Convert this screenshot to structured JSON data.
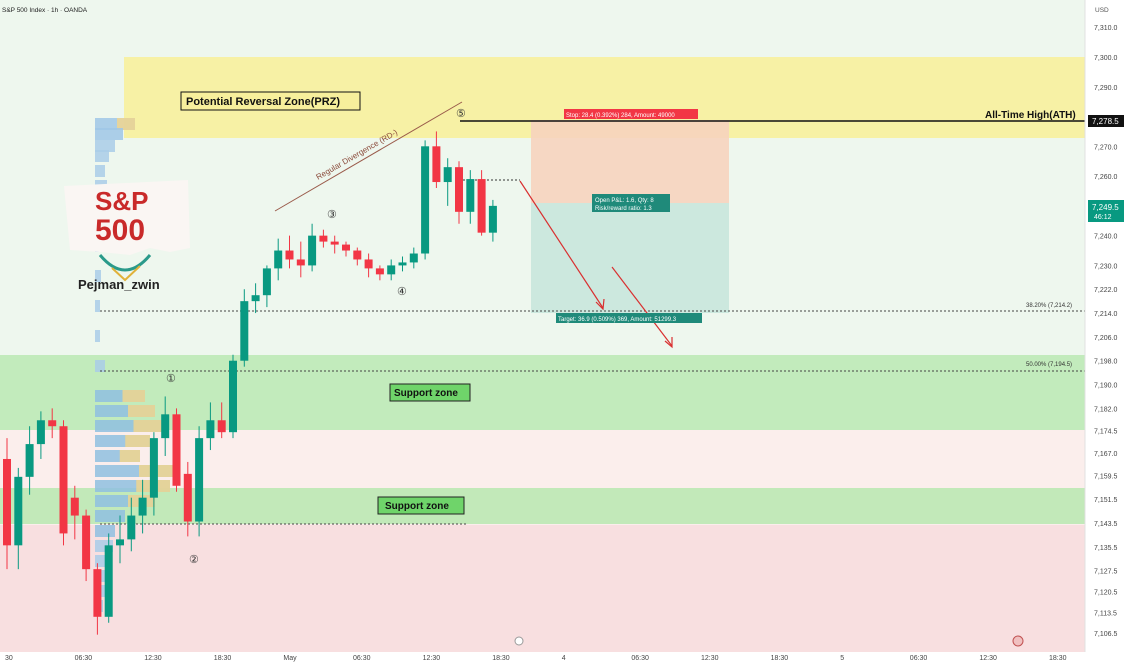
{
  "chart_data": {
    "type": "candlestick",
    "title": "S&P 500 Index · 1h · OANDA",
    "currency": "USD",
    "ylim": [
      7100,
      7317
    ],
    "y_ticks": [
      "7,310.0",
      "7,300.0",
      "7,290.0",
      "7,270.0",
      "7,260.0",
      "7,240.0",
      "7,230.0",
      "7,222.0",
      "7,214.0",
      "7,206.0",
      "7,198.0",
      "7,190.0",
      "7,182.0",
      "7,174.5",
      "7,167.0",
      "7,159.5",
      "7,151.5",
      "7,143.5",
      "7,135.5",
      "7,127.5",
      "7,120.5",
      "7,113.5",
      "7,106.5"
    ],
    "x_labels": [
      "30",
      "06:30",
      "12:30",
      "18:30",
      "May",
      "06:30",
      "12:30",
      "18:30",
      "4",
      "06:30",
      "12:30",
      "18:30",
      "5",
      "06:30",
      "12:30",
      "18:30"
    ],
    "candles": [
      [
        7165,
        7172,
        7128,
        7136
      ],
      [
        7136,
        7162,
        7128,
        7159
      ],
      [
        7159,
        7176,
        7153,
        7170
      ],
      [
        7170,
        7181,
        7165,
        7178
      ],
      [
        7178,
        7182,
        7172,
        7176
      ],
      [
        7176,
        7178,
        7136,
        7140
      ],
      [
        7152,
        7156,
        7138,
        7146
      ],
      [
        7146,
        7148,
        7124,
        7128
      ],
      [
        7128,
        7130,
        7106,
        7112
      ],
      [
        7112,
        7140,
        7110,
        7136
      ],
      [
        7136,
        7146,
        7130,
        7138
      ],
      [
        7138,
        7152,
        7134,
        7146
      ],
      [
        7146,
        7158,
        7140,
        7152
      ],
      [
        7152,
        7174,
        7146,
        7172
      ],
      [
        7172,
        7186,
        7166,
        7180
      ],
      [
        7180,
        7182,
        7154,
        7156
      ],
      [
        7160,
        7164,
        7139,
        7144
      ],
      [
        7144,
        7176,
        7139,
        7172
      ],
      [
        7172,
        7184,
        7168,
        7178
      ],
      [
        7178,
        7184,
        7172,
        7174
      ],
      [
        7174,
        7200,
        7172,
        7198
      ],
      [
        7198,
        7222,
        7196,
        7218
      ],
      [
        7218,
        7224,
        7214,
        7220
      ],
      [
        7220,
        7230,
        7216,
        7229
      ],
      [
        7229,
        7239,
        7225,
        7235
      ],
      [
        7235,
        7240,
        7229,
        7232
      ],
      [
        7232,
        7238,
        7226,
        7230
      ],
      [
        7230,
        7244,
        7228,
        7240
      ],
      [
        7240,
        7242,
        7236,
        7238
      ],
      [
        7238,
        7240,
        7234,
        7237
      ],
      [
        7237,
        7238,
        7233,
        7235
      ],
      [
        7235,
        7236,
        7230,
        7232
      ],
      [
        7232,
        7234,
        7226,
        7229
      ],
      [
        7229,
        7230,
        7225,
        7227
      ],
      [
        7227,
        7232,
        7225,
        7230
      ],
      [
        7230,
        7233,
        7228,
        7231
      ],
      [
        7231,
        7236,
        7229,
        7234
      ],
      [
        7234,
        7272,
        7232,
        7270
      ],
      [
        7270,
        7275,
        7256,
        7258
      ],
      [
        7258,
        7266,
        7250,
        7263
      ],
      [
        7263,
        7265,
        7244,
        7248
      ],
      [
        7248,
        7262,
        7244,
        7259
      ],
      [
        7259,
        7262,
        7240,
        7241
      ],
      [
        7241,
        7252,
        7238,
        7250
      ]
    ],
    "annotations": {
      "prz_label": "Potential Reversal Zone(PRZ)",
      "divergence_label": "Regular Divergence (RD-)",
      "ath_label": "All-Time High(ATH)",
      "ath_price": "7,278.5",
      "current_price": "7,249.5",
      "countdown": "46:12",
      "support_zone_1": "Support zone",
      "support_zone_2": "Support zone",
      "fib_382": "38.20% (7,214.2)",
      "fib_500": "50.00% (7,194.5)",
      "stop_label": "Stop: 28.4 (0.392%) 284, Amount: 49000",
      "open_label": "Open P&L: 1.6, Qty: 8",
      "rr_label": "Risk/reward ratio: 1.3",
      "target_label": "Target: 36.9 (0.509%) 369, Amount: 51299.3",
      "wave_1": "①",
      "wave_2": "②",
      "wave_3": "③",
      "wave_4": "④",
      "wave_5": "⑤",
      "logo_line1": "S&P",
      "logo_line2": "500",
      "author": "Pejman_zwin"
    },
    "colors": {
      "up": "#089981",
      "down": "#f23645",
      "prz": "#f7ef9c",
      "support": "#b7e8b0",
      "resist_tint": "#fbeeec",
      "stop_zone": "#f6d3be",
      "target_zone": "#c9e7dc"
    }
  }
}
